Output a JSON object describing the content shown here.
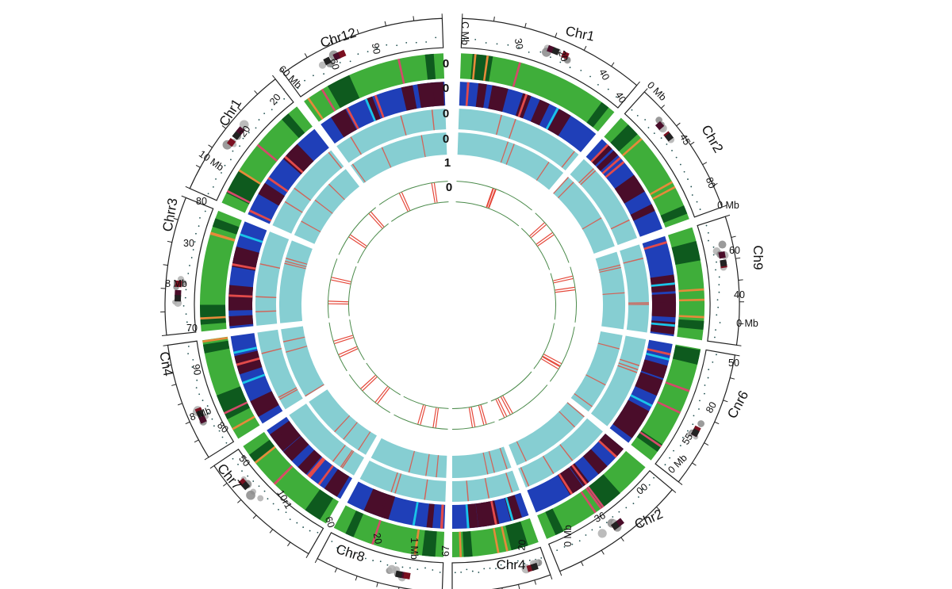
{
  "colors": {
    "green_ring": "#3fae3a",
    "green_dark": "#0e5a1e",
    "blue_ring": "#1f3fb8",
    "maroon": "#4a0d2a",
    "cyan_ring": "#86ced2",
    "red_mark": "#e5483a",
    "inner_line": "#4a8a4a"
  },
  "ring_values": [
    "0",
    "0",
    "0",
    "0",
    "1",
    "0"
  ],
  "segments": [
    {
      "id": "chr1-top",
      "label": "Chr1",
      "ticks": [
        "C Mb",
        "30",
        "20",
        "40",
        "40"
      ],
      "last_tick": "0 Mb"
    },
    {
      "id": "chr2",
      "label": "Chr2",
      "ticks": [
        "45",
        "80"
      ],
      "last_tick": "0 Mb"
    },
    {
      "id": "chr9",
      "label": "Ch9",
      "ticks": [
        "60",
        "40"
      ],
      "last_tick": ""
    },
    {
      "id": "chr6",
      "label": "Cnr6",
      "ticks": [
        "0 Mb",
        "50",
        "80",
        "55"
      ],
      "last_tick": ""
    },
    {
      "id": "chr3-bottom",
      "label": "Chr2",
      "ticks": [
        "0 Mb",
        "00",
        "36"
      ],
      "last_tick": ""
    },
    {
      "id": "chr4-bottom",
      "label": "Chr4",
      "ticks": [
        "0 Mb",
        "20",
        "67"
      ],
      "last_tick": ""
    },
    {
      "id": "chr8",
      "label": "Chr8",
      "ticks": [
        "1 Mb",
        "20",
        "60",
        "10r1"
      ],
      "last_tick": ""
    },
    {
      "id": "chr7",
      "label": "Chr7",
      "ticks": [
        "50",
        "80",
        "8 Mb"
      ],
      "last_tick": ""
    },
    {
      "id": "chr4-left",
      "label": "Cn4",
      "ticks": [
        "90",
        "70"
      ],
      "last_tick": ""
    },
    {
      "id": "chr3-left",
      "label": "Chrr3",
      "ticks": [
        "8 Mb",
        "30",
        "80"
      ],
      "last_tick": ""
    },
    {
      "id": "chr1-left",
      "label": "Chr1",
      "ticks": [
        "10 Mb",
        "20",
        "20"
      ],
      "last_tick": ""
    },
    {
      "id": "chr12",
      "label": "Chr12",
      "ticks": [
        "60 Mb",
        "60",
        "90"
      ],
      "last_tick": ""
    }
  ]
}
